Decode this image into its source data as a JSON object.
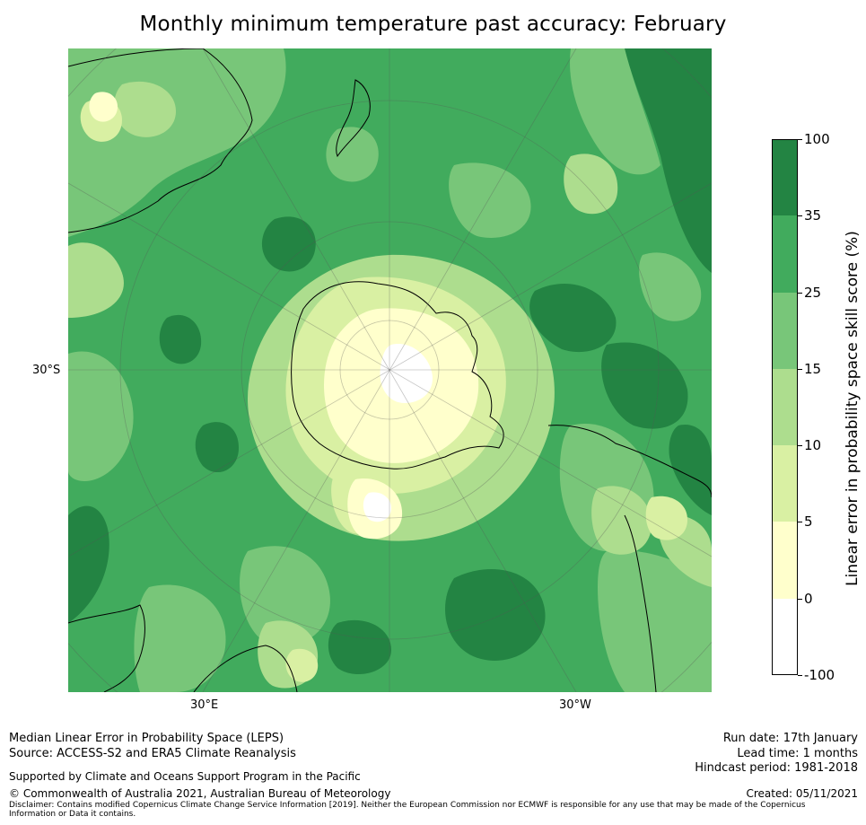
{
  "title": "Monthly minimum temperature past accuracy: February",
  "map": {
    "projection": "south-polar-stereographic",
    "axis_labels": {
      "left_lat": "30°S",
      "bottom_left_lon": "30°E",
      "bottom_right_lon": "30°W"
    },
    "background_level": "25-35"
  },
  "colorbar": {
    "title": "Linear error in probability space skill score (%)",
    "levels": [
      "-100",
      "0",
      "5",
      "10",
      "15",
      "25",
      "35",
      "100"
    ],
    "colors": [
      "#ffffff",
      "#ffffcc",
      "#d9f0a3",
      "#addd8e",
      "#78c679",
      "#41ab5d",
      "#238443"
    ]
  },
  "footer": {
    "description": "Median Linear Error in Probability Space (LEPS)",
    "source": "Source: ACCESS-S2 and ERA5 Climate Reanalysis",
    "supported": "Supported by Climate and Oceans Support Program in the Pacific",
    "copyright": "© Commonwealth of Australia 2021, Australian Bureau of Meteorology",
    "disclaimer": "Disclaimer: Contains modified Copernicus Climate Change Service Information [2019]. Neither the European Commission nor ECMWF is responsible for any use that may be made of the Copernicus Information or Data it contains.",
    "run_date": "Run date: 17th January",
    "lead_time": "Lead time: 1 months",
    "hindcast": "Hindcast period: 1981-2018",
    "created": "Created: 05/11/2021"
  }
}
